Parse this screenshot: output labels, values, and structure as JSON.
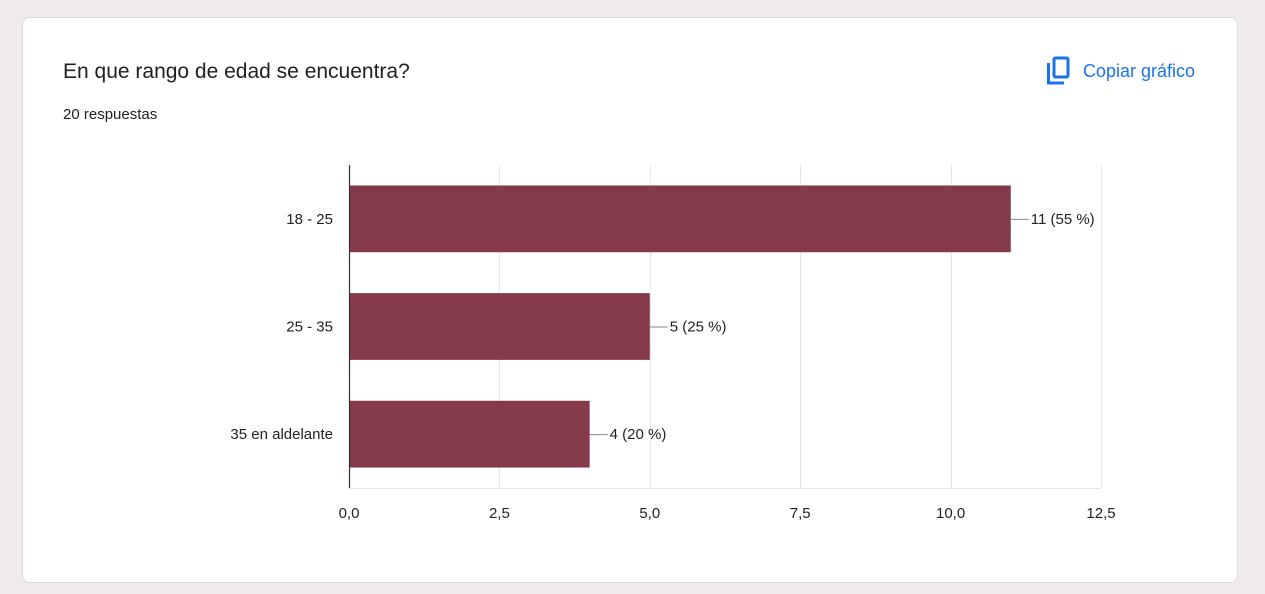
{
  "header": {
    "title": "En que rango de edad se encuentra?",
    "subtitle": "20 respuestas",
    "copy_label": "Copiar gráfico",
    "copy_icon": "copy-icon"
  },
  "colors": {
    "bar": "#843A48",
    "accent": "#1a73e8",
    "grid": "#e6e6e6",
    "axis": "#333333"
  },
  "chart_data": {
    "type": "bar",
    "orientation": "horizontal",
    "categories": [
      "18 - 25",
      "25 - 35",
      "35 en aldelante"
    ],
    "values": [
      11,
      5,
      4
    ],
    "data_labels": [
      "11 (55 %)",
      "5 (25 %)",
      "4 (20 %)"
    ],
    "xlim": [
      0,
      12.5
    ],
    "xticks": [
      0,
      2.5,
      5,
      7.5,
      10,
      12.5
    ],
    "xtick_labels": [
      "0,0",
      "2,5",
      "5,0",
      "7,5",
      "10,0",
      "12,5"
    ],
    "grid": true,
    "legend": "none"
  }
}
